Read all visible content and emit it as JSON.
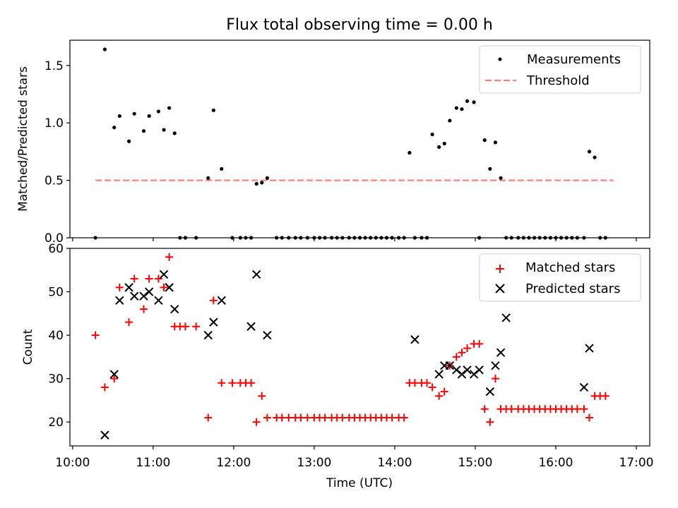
{
  "title": "Flux total observing time = 0.00 h",
  "chart_data": [
    {
      "type": "scatter",
      "ylabel": "Matched/Predicted stars",
      "ylim": [
        0,
        1.72
      ],
      "yticks": [
        0.0,
        0.5,
        1.0,
        1.5
      ],
      "ytick_labels": [
        "0.0",
        "0.5",
        "1.0",
        "1.5"
      ],
      "legend_position": "top-right",
      "colors": {
        "measurements": "#000000",
        "threshold": "#ff7f7f"
      },
      "threshold": {
        "name": "Threshold",
        "value": 0.5,
        "x_range": [
          "10:17",
          "16:43"
        ]
      },
      "series": [
        {
          "name": "Measurements",
          "x": [
            "10:17",
            "10:24",
            "10:31",
            "10:35",
            "10:42",
            "10:46",
            "10:53",
            "10:57",
            "11:04",
            "11:08",
            "11:12",
            "11:16",
            "11:20",
            "11:24",
            "11:32",
            "11:41",
            "11:45",
            "11:51",
            "11:59",
            "12:05",
            "12:09",
            "12:13",
            "12:17",
            "12:21",
            "12:25",
            "12:32",
            "12:36",
            "12:41",
            "12:46",
            "12:50",
            "12:55",
            "13:00",
            "13:04",
            "13:08",
            "13:13",
            "13:17",
            "13:21",
            "13:26",
            "13:30",
            "13:34",
            "13:38",
            "13:42",
            "13:46",
            "13:50",
            "13:54",
            "13:58",
            "14:03",
            "14:07",
            "14:11",
            "14:15",
            "14:20",
            "14:24",
            "14:28",
            "14:33",
            "14:37",
            "14:41",
            "14:46",
            "14:50",
            "14:54",
            "14:59",
            "15:03",
            "15:07",
            "15:11",
            "15:15",
            "15:19",
            "15:23",
            "15:27",
            "15:32",
            "15:36",
            "15:40",
            "15:44",
            "15:48",
            "15:52",
            "15:56",
            "16:00",
            "16:04",
            "16:08",
            "16:12",
            "16:16",
            "16:21",
            "16:25",
            "16:29",
            "16:33",
            "16:37"
          ],
          "y": [
            0.0,
            1.64,
            0.96,
            1.06,
            0.84,
            1.08,
            0.93,
            1.06,
            1.1,
            0.94,
            1.13,
            0.91,
            0.0,
            0.0,
            0.0,
            0.52,
            1.11,
            0.6,
            0.0,
            0.0,
            0.0,
            0.0,
            0.47,
            0.48,
            0.52,
            0.0,
            0.0,
            0.0,
            0.0,
            0.0,
            0.0,
            0.0,
            0.0,
            0.0,
            0.0,
            0.0,
            0.0,
            0.0,
            0.0,
            0.0,
            0.0,
            0.0,
            0.0,
            0.0,
            0.0,
            0.0,
            0.0,
            0.0,
            0.74,
            0.0,
            0.0,
            0.0,
            0.9,
            0.79,
            0.82,
            1.02,
            1.13,
            1.12,
            1.19,
            1.18,
            0.0,
            0.85,
            0.6,
            0.83,
            0.52,
            0.0,
            0.0,
            0.0,
            0.0,
            0.0,
            0.0,
            0.0,
            0.0,
            0.0,
            0.0,
            0.0,
            0.0,
            0.0,
            0.0,
            0.0,
            0.75,
            0.7,
            0.0,
            0.0
          ]
        }
      ]
    },
    {
      "type": "scatter",
      "xlabel": "Time (UTC)",
      "ylabel": "Count",
      "ylim": [
        14.5,
        60
      ],
      "yticks": [
        20,
        30,
        40,
        50,
        60
      ],
      "ytick_labels": [
        "20",
        "30",
        "40",
        "50",
        "60"
      ],
      "xlim": [
        "9:58",
        "17:10"
      ],
      "xticks": [
        "10:00",
        "11:00",
        "12:00",
        "13:00",
        "14:00",
        "15:00",
        "16:00",
        "17:00"
      ],
      "xtick_labels": [
        "10:00",
        "11:00",
        "12:00",
        "13:00",
        "14:00",
        "15:00",
        "16:00",
        "17:00"
      ],
      "legend_position": "top-right",
      "colors": {
        "matched": "#ff0000",
        "predicted": "#000000"
      },
      "series": [
        {
          "name": "Matched stars",
          "marker": "plus",
          "x": [
            "10:17",
            "10:24",
            "10:31",
            "10:35",
            "10:42",
            "10:46",
            "10:53",
            "10:57",
            "11:04",
            "11:08",
            "11:12",
            "11:16",
            "11:20",
            "11:24",
            "11:32",
            "11:41",
            "11:45",
            "11:51",
            "11:59",
            "12:05",
            "12:09",
            "12:13",
            "12:17",
            "12:21",
            "12:25",
            "12:32",
            "12:36",
            "12:41",
            "12:46",
            "12:50",
            "12:55",
            "13:00",
            "13:04",
            "13:08",
            "13:13",
            "13:17",
            "13:21",
            "13:26",
            "13:30",
            "13:34",
            "13:38",
            "13:42",
            "13:46",
            "13:50",
            "13:54",
            "13:58",
            "14:03",
            "14:07",
            "14:11",
            "14:15",
            "14:20",
            "14:24",
            "14:28",
            "14:33",
            "14:37",
            "14:41",
            "14:46",
            "14:50",
            "14:54",
            "14:59",
            "15:03",
            "15:07",
            "15:11",
            "15:15",
            "15:19",
            "15:23",
            "15:27",
            "15:32",
            "15:36",
            "15:40",
            "15:44",
            "15:48",
            "15:52",
            "15:56",
            "16:00",
            "16:04",
            "16:08",
            "16:12",
            "16:16",
            "16:21",
            "16:25",
            "16:29",
            "16:33",
            "16:37"
          ],
          "y": [
            40,
            28,
            30,
            51,
            43,
            53,
            46,
            53,
            53,
            51,
            58,
            42,
            42,
            42,
            42,
            21,
            48,
            29,
            29,
            29,
            29,
            29,
            20,
            26,
            21,
            21,
            21,
            21,
            21,
            21,
            21,
            21,
            21,
            21,
            21,
            21,
            21,
            21,
            21,
            21,
            21,
            21,
            21,
            21,
            21,
            21,
            21,
            21,
            29,
            29,
            29,
            29,
            28,
            26,
            27,
            33,
            35,
            36,
            37,
            38,
            38,
            23,
            20,
            30,
            23,
            23,
            23,
            23,
            23,
            23,
            23,
            23,
            23,
            23,
            23,
            23,
            23,
            23,
            23,
            23,
            21,
            26,
            26,
            26
          ]
        },
        {
          "name": "Predicted stars",
          "marker": "x",
          "x": [
            "10:24",
            "10:31",
            "10:35",
            "10:42",
            "10:46",
            "10:53",
            "10:57",
            "11:04",
            "11:08",
            "11:12",
            "11:16",
            "11:41",
            "11:45",
            "11:51",
            "12:13",
            "12:17",
            "12:25",
            "14:15",
            "14:33",
            "14:37",
            "14:41",
            "14:46",
            "14:50",
            "14:54",
            "14:59",
            "15:03",
            "15:11",
            "15:15",
            "15:19",
            "15:23",
            "16:21",
            "16:25"
          ],
          "y": [
            17,
            31,
            48,
            51,
            49,
            49,
            50,
            48,
            54,
            51,
            46,
            40,
            43,
            48,
            42,
            54,
            40,
            39,
            31,
            33,
            33,
            32,
            31,
            32,
            31,
            32,
            27,
            33,
            36,
            44,
            28,
            37
          ]
        }
      ]
    }
  ]
}
